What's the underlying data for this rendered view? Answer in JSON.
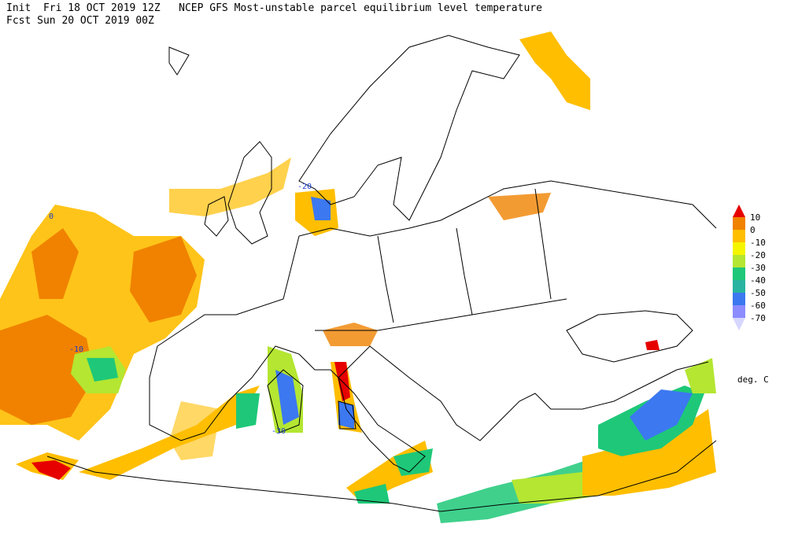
{
  "header": {
    "line1": "Init  Fri 18 OCT 2019 12Z   NCEP GFS Most-unstable parcel equilibrium level temperature",
    "line2": "Fcst Sun 20 OCT 2019 00Z"
  },
  "legend": {
    "levels": [
      10,
      0,
      -10,
      -20,
      -30,
      -40,
      -50,
      -60,
      -70
    ],
    "colors": [
      "#e60000",
      "#f08200",
      "#ffbe00",
      "#f5f500",
      "#b4e632",
      "#1ec878",
      "#28b4a0",
      "#3c78f0",
      "#8c8cff",
      "#d6d6ff"
    ],
    "unit": "deg. C"
  },
  "contour_labels": [
    "-20",
    "-10",
    "-30",
    "0"
  ]
}
